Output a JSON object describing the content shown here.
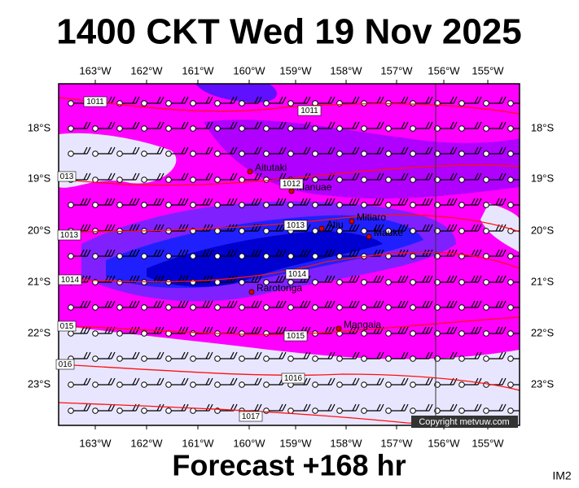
{
  "header": {
    "title": "1400 CKT Wed 19 Nov 2025"
  },
  "map": {
    "longitude_labels": [
      "163°W",
      "162°W",
      "161°W",
      "160°W",
      "159°W",
      "158°W",
      "157°W",
      "156°W",
      "155°W"
    ],
    "latitude_labels": [
      "18°S",
      "19°S",
      "20°S",
      "21°S",
      "22°S",
      "23°S"
    ],
    "places": [
      {
        "label": "Aitutaki"
      },
      {
        "label": "Manuae"
      },
      {
        "label": "Mitiaro"
      },
      {
        "label": "Atiu"
      },
      {
        "label": "Mauke"
      },
      {
        "label": "Rarotonga"
      },
      {
        "label": "Mangaia"
      }
    ],
    "isobar_labels": [
      "1011",
      "1011",
      "1012",
      "1013",
      "1014",
      "1015",
      "1016",
      "1017",
      "013",
      "1013",
      "1014",
      "015",
      "016"
    ],
    "copyright": "Copyright metvuw.com"
  },
  "footer": {
    "caption": "Forecast +168 hr",
    "image_id": "IM2"
  }
}
